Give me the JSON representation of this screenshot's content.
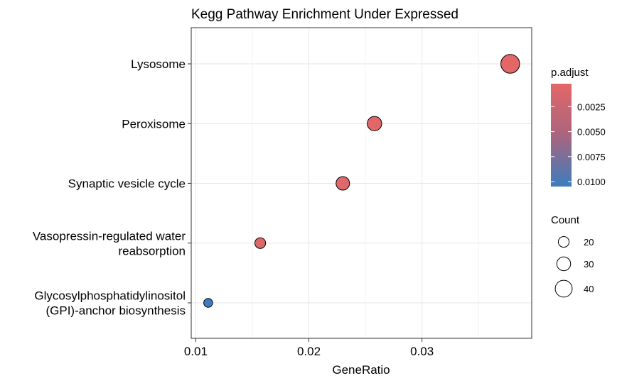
{
  "chart_data": {
    "type": "scatter",
    "title": "Kegg Pathway Enrichment Under Expressed",
    "xlabel": "GeneRatio",
    "ylabel": "",
    "xlim": [
      0.0096,
      0.0397
    ],
    "x_ticks": [
      "0.01",
      "0.02",
      "0.03"
    ],
    "x_tick_values": [
      0.01,
      0.02,
      0.03
    ],
    "grid": true,
    "categories": [
      "Glycosylphosphatidylinositol\n(GPI)-anchor biosynthesis",
      "Vasopressin-regulated water\nreabsorption",
      "Synaptic vesicle cycle",
      "Peroxisome",
      "Lysosome"
    ],
    "points": [
      {
        "term": "Lysosome",
        "gene_ratio": 0.0378,
        "count": 46,
        "p_adjust": 0.0002
      },
      {
        "term": "Peroxisome",
        "gene_ratio": 0.0258,
        "count": 32,
        "p_adjust": 0.0004
      },
      {
        "term": "Synaptic vesicle cycle",
        "gene_ratio": 0.023,
        "count": 29,
        "p_adjust": 0.0005
      },
      {
        "term": "Vasopressin-regulated water reabsorption",
        "gene_ratio": 0.0157,
        "count": 20,
        "p_adjust": 0.0006
      },
      {
        "term": "Glycosylphosphatidylinositol (GPI)-anchor biosynthesis",
        "gene_ratio": 0.0111,
        "count": 14,
        "p_adjust": 0.0105
      }
    ],
    "color_legend": {
      "title": "p.adjust",
      "labels": [
        "0.0025",
        "0.0050",
        "0.0075",
        "0.0100"
      ],
      "values": [
        0.0025,
        0.005,
        0.0075,
        0.01
      ],
      "range": [
        0.0002,
        0.0105
      ],
      "low_color": "#E46767",
      "high_color": "#3C7DBD"
    },
    "size_legend": {
      "title": "Count",
      "labels": [
        "20",
        "30",
        "40"
      ],
      "values": [
        20,
        30,
        40
      ]
    },
    "legend_position": "right"
  }
}
